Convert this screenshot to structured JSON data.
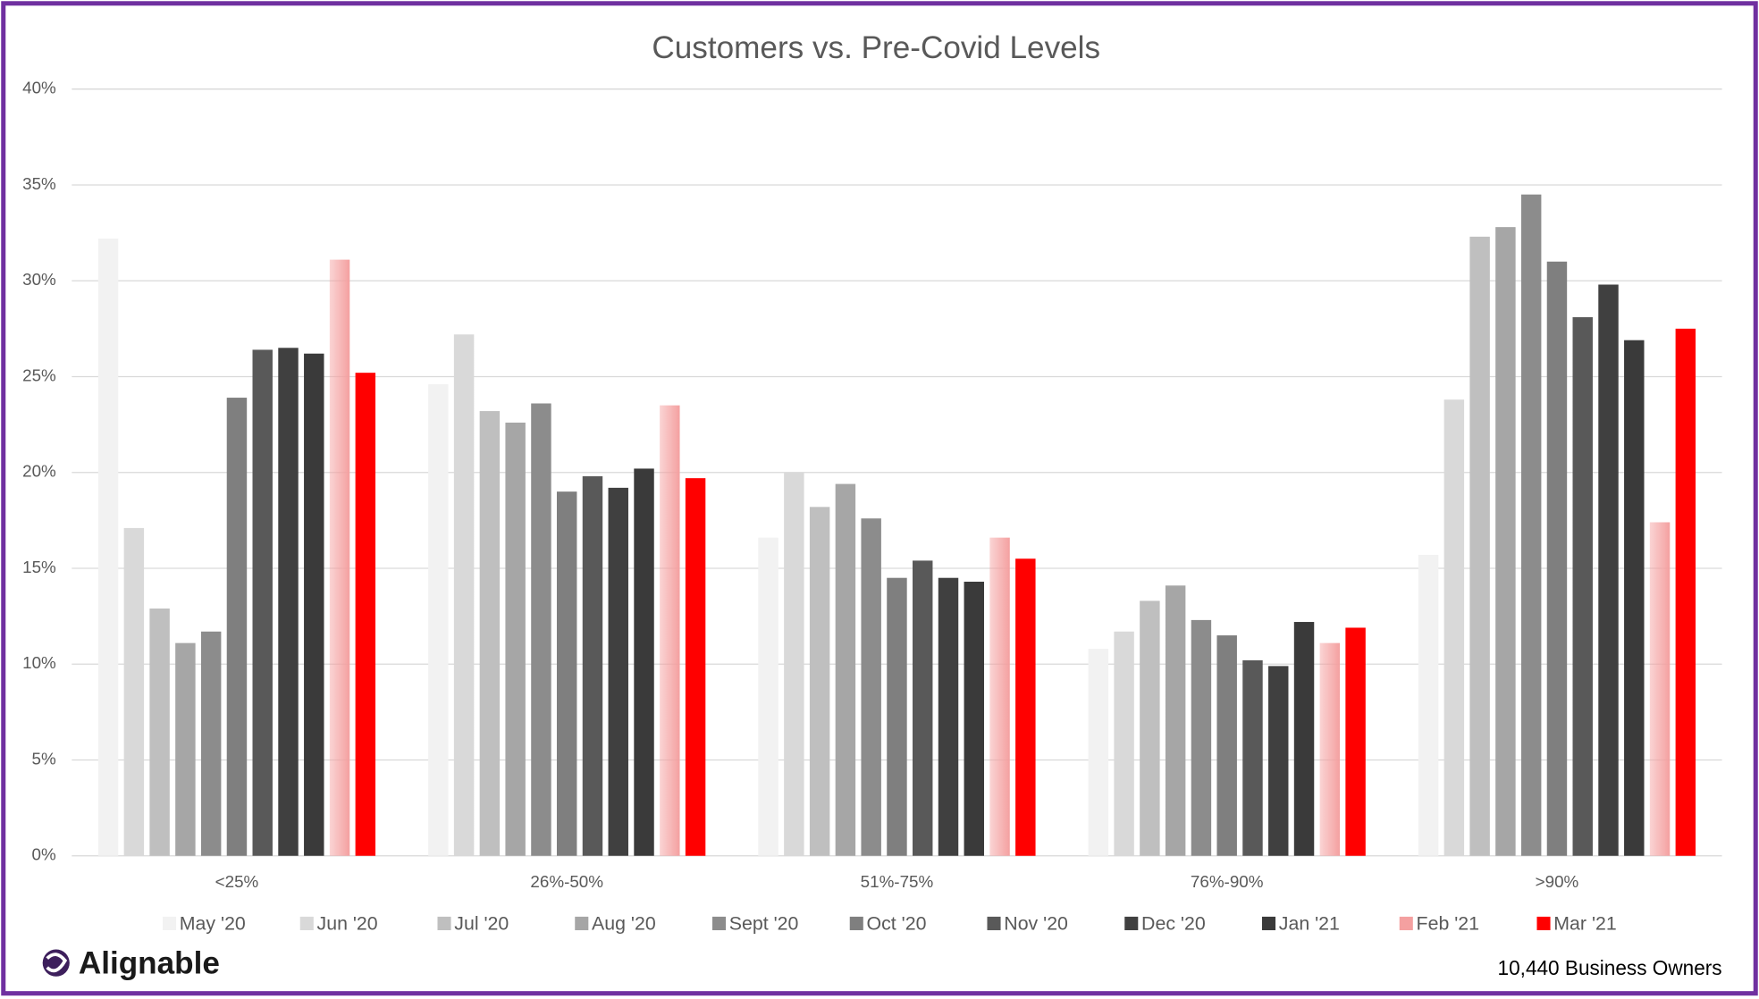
{
  "chart_data": {
    "type": "bar",
    "title": "Customers vs. Pre-Covid Levels",
    "categories": [
      "<25%",
      "26%-50%",
      "51%-75%",
      "76%-90%",
      ">90%"
    ],
    "series": [
      {
        "name": "May '20",
        "color": "#f2f2f2",
        "values": [
          32.2,
          24.6,
          16.6,
          10.8,
          15.7
        ]
      },
      {
        "name": "Jun '20",
        "color": "#d9d9d9",
        "values": [
          17.1,
          27.2,
          20.0,
          11.7,
          23.8
        ]
      },
      {
        "name": "Jul '20",
        "color": "#bfbfbf",
        "values": [
          12.9,
          23.2,
          18.2,
          13.3,
          32.3
        ]
      },
      {
        "name": "Aug '20",
        "color": "#a6a6a6",
        "values": [
          11.1,
          22.6,
          19.4,
          14.1,
          32.8
        ]
      },
      {
        "name": "Sept '20",
        "color": "#8c8c8c",
        "values": [
          11.7,
          23.6,
          17.6,
          12.3,
          34.5
        ]
      },
      {
        "name": "Oct '20",
        "color": "#7f7f7f",
        "values": [
          23.9,
          19.0,
          14.5,
          11.5,
          31.0
        ]
      },
      {
        "name": "Nov '20",
        "color": "#595959",
        "values": [
          26.4,
          19.8,
          15.4,
          10.2,
          28.1
        ]
      },
      {
        "name": "Dec '20",
        "color": "#404040",
        "values": [
          26.5,
          19.2,
          14.5,
          9.9,
          29.8
        ]
      },
      {
        "name": "Jan '21",
        "color": "#3a3a3a",
        "values": [
          26.2,
          20.2,
          14.3,
          12.2,
          26.9
        ]
      },
      {
        "name": "Feb '21",
        "color": "#f4a0a0",
        "values": [
          31.1,
          23.5,
          16.6,
          11.1,
          17.4
        ]
      },
      {
        "name": "Mar '21",
        "color": "#ff0000",
        "values": [
          25.2,
          19.7,
          15.5,
          11.9,
          27.5
        ]
      }
    ],
    "ylim": [
      0,
      40
    ],
    "yticks": [
      {
        "value": 0,
        "label": "0%"
      },
      {
        "value": 5,
        "label": "5%"
      },
      {
        "value": 10,
        "label": "10%"
      },
      {
        "value": 15,
        "label": "15%"
      },
      {
        "value": 20,
        "label": "20%"
      },
      {
        "value": 25,
        "label": "25%"
      },
      {
        "value": 30,
        "label": "30%"
      },
      {
        "value": 35,
        "label": "35%"
      },
      {
        "value": 40,
        "label": "40%"
      }
    ],
    "grid": true,
    "legend": "bottom",
    "logo": "Alignable",
    "note": "10,440 Business Owners"
  }
}
